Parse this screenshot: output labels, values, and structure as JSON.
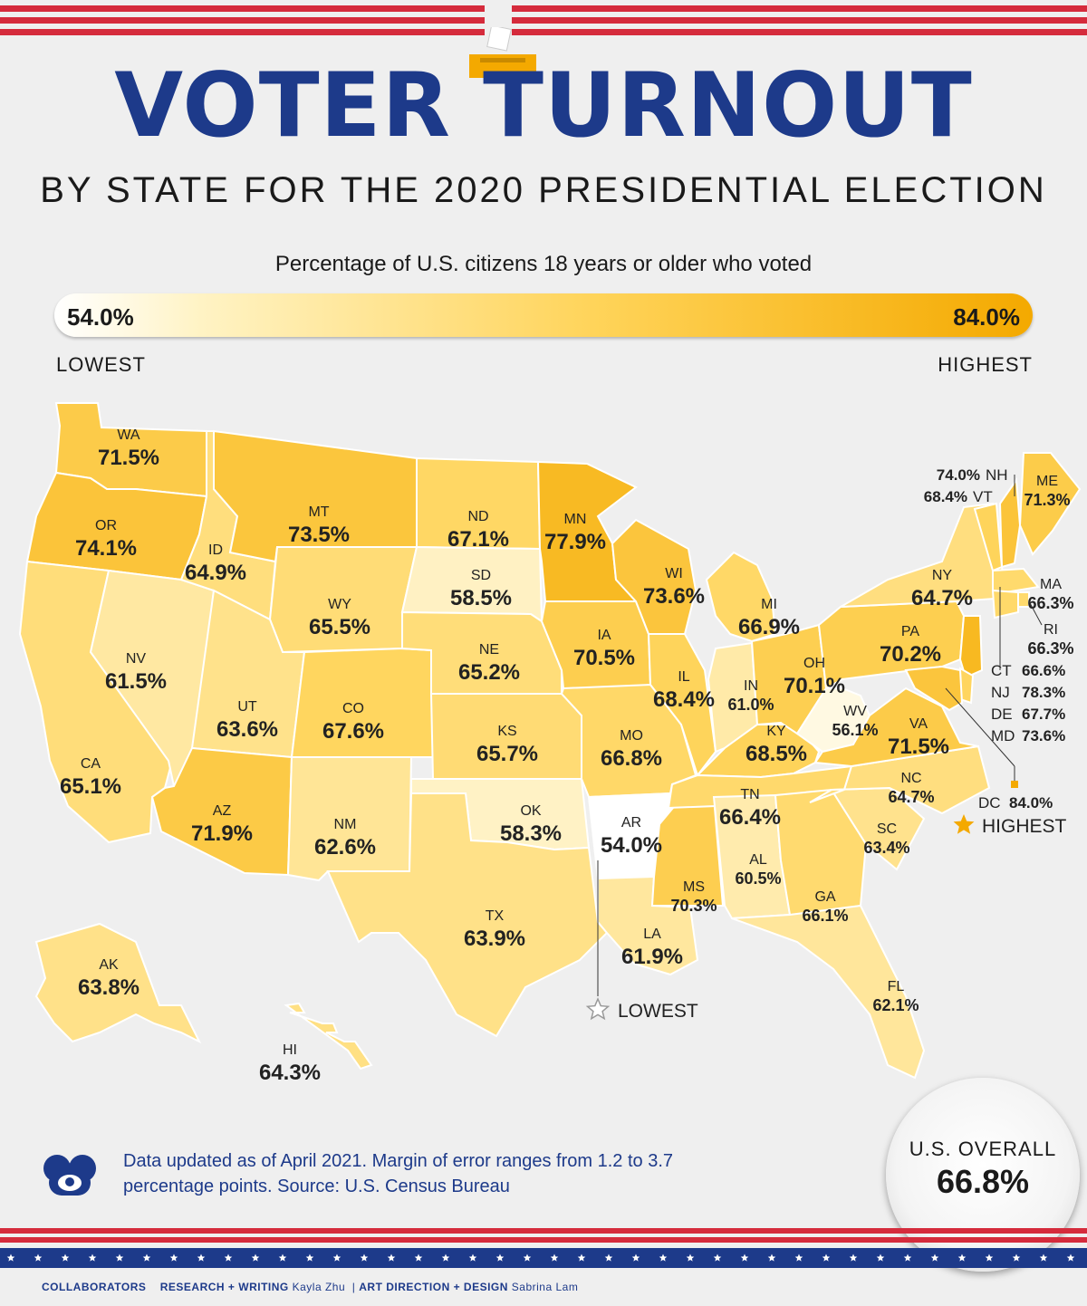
{
  "title": "VOTER TURNOUT",
  "subtitle": "BY STATE FOR THE 2020 PRESIDENTIAL ELECTION",
  "legend": {
    "caption": "Percentage of U.S. citizens 18 years or older who voted",
    "min_label": "54.0%",
    "max_label": "84.0%",
    "low_text": "LOWEST",
    "high_text": "HIGHEST",
    "min_value": 54.0,
    "max_value": 84.0,
    "color_low": "#ffffff",
    "color_high": "#f4a900"
  },
  "states": [
    {
      "abbr": "WA",
      "value": "71.5%",
      "num": 71.5
    },
    {
      "abbr": "OR",
      "value": "74.1%",
      "num": 74.1
    },
    {
      "abbr": "CA",
      "value": "65.1%",
      "num": 65.1
    },
    {
      "abbr": "NV",
      "value": "61.5%",
      "num": 61.5
    },
    {
      "abbr": "ID",
      "value": "64.9%",
      "num": 64.9
    },
    {
      "abbr": "MT",
      "value": "73.5%",
      "num": 73.5
    },
    {
      "abbr": "WY",
      "value": "65.5%",
      "num": 65.5
    },
    {
      "abbr": "UT",
      "value": "63.6%",
      "num": 63.6
    },
    {
      "abbr": "AZ",
      "value": "71.9%",
      "num": 71.9
    },
    {
      "abbr": "CO",
      "value": "67.6%",
      "num": 67.6
    },
    {
      "abbr": "NM",
      "value": "62.6%",
      "num": 62.6
    },
    {
      "abbr": "ND",
      "value": "67.1%",
      "num": 67.1
    },
    {
      "abbr": "SD",
      "value": "58.5%",
      "num": 58.5
    },
    {
      "abbr": "NE",
      "value": "65.2%",
      "num": 65.2
    },
    {
      "abbr": "KS",
      "value": "65.7%",
      "num": 65.7
    },
    {
      "abbr": "OK",
      "value": "58.3%",
      "num": 58.3
    },
    {
      "abbr": "TX",
      "value": "63.9%",
      "num": 63.9
    },
    {
      "abbr": "MN",
      "value": "77.9%",
      "num": 77.9
    },
    {
      "abbr": "IA",
      "value": "70.5%",
      "num": 70.5
    },
    {
      "abbr": "MO",
      "value": "66.8%",
      "num": 66.8
    },
    {
      "abbr": "AR",
      "value": "54.0%",
      "num": 54.0
    },
    {
      "abbr": "LA",
      "value": "61.9%",
      "num": 61.9
    },
    {
      "abbr": "WI",
      "value": "73.6%",
      "num": 73.6
    },
    {
      "abbr": "IL",
      "value": "68.4%",
      "num": 68.4
    },
    {
      "abbr": "MS",
      "value": "70.3%",
      "num": 70.3
    },
    {
      "abbr": "MI",
      "value": "66.9%",
      "num": 66.9
    },
    {
      "abbr": "IN",
      "value": "61.0%",
      "num": 61.0
    },
    {
      "abbr": "KY",
      "value": "68.5%",
      "num": 68.5
    },
    {
      "abbr": "TN",
      "value": "66.4%",
      "num": 66.4
    },
    {
      "abbr": "AL",
      "value": "60.5%",
      "num": 60.5
    },
    {
      "abbr": "OH",
      "value": "70.1%",
      "num": 70.1
    },
    {
      "abbr": "WV",
      "value": "56.1%",
      "num": 56.1
    },
    {
      "abbr": "GA",
      "value": "66.1%",
      "num": 66.1
    },
    {
      "abbr": "FL",
      "value": "62.1%",
      "num": 62.1
    },
    {
      "abbr": "SC",
      "value": "63.4%",
      "num": 63.4
    },
    {
      "abbr": "NC",
      "value": "64.7%",
      "num": 64.7
    },
    {
      "abbr": "VA",
      "value": "71.5%",
      "num": 71.5
    },
    {
      "abbr": "PA",
      "value": "70.2%",
      "num": 70.2
    },
    {
      "abbr": "NY",
      "value": "64.7%",
      "num": 64.7
    },
    {
      "abbr": "ME",
      "value": "71.3%",
      "num": 71.3
    },
    {
      "abbr": "NH",
      "value": "74.0%",
      "num": 74.0
    },
    {
      "abbr": "VT",
      "value": "68.4%",
      "num": 68.4
    },
    {
      "abbr": "MA",
      "value": "66.3%",
      "num": 66.3
    },
    {
      "abbr": "RI",
      "value": "66.3%",
      "num": 66.3
    },
    {
      "abbr": "CT",
      "value": "66.6%",
      "num": 66.6
    },
    {
      "abbr": "NJ",
      "value": "78.3%",
      "num": 78.3
    },
    {
      "abbr": "DE",
      "value": "67.7%",
      "num": 67.7
    },
    {
      "abbr": "MD",
      "value": "73.6%",
      "num": 73.6
    },
    {
      "abbr": "DC",
      "value": "84.0%",
      "num": 84.0
    },
    {
      "abbr": "AK",
      "value": "63.8%",
      "num": 63.8
    },
    {
      "abbr": "HI",
      "value": "64.3%",
      "num": 64.3
    }
  ],
  "callouts": {
    "highest": "HIGHEST",
    "lowest": "LOWEST"
  },
  "footnote": "Data updated as of April 2021. Margin of error ranges from 1.2 to 3.7 percentage points. Source: U.S. Census Bureau",
  "overall": {
    "label": "U.S. OVERALL",
    "value": "66.8%"
  },
  "credits": {
    "collaborators": "COLLABORATORS",
    "research_label": "RESEARCH + WRITING",
    "research_name": "Kayla Zhu",
    "design_label": "ART DIRECTION + DESIGN",
    "design_name": "Sabrina Lam"
  },
  "colors": {
    "navy": "#1d3a8a",
    "red": "#d52b3c",
    "gold": "#f4a900"
  }
}
